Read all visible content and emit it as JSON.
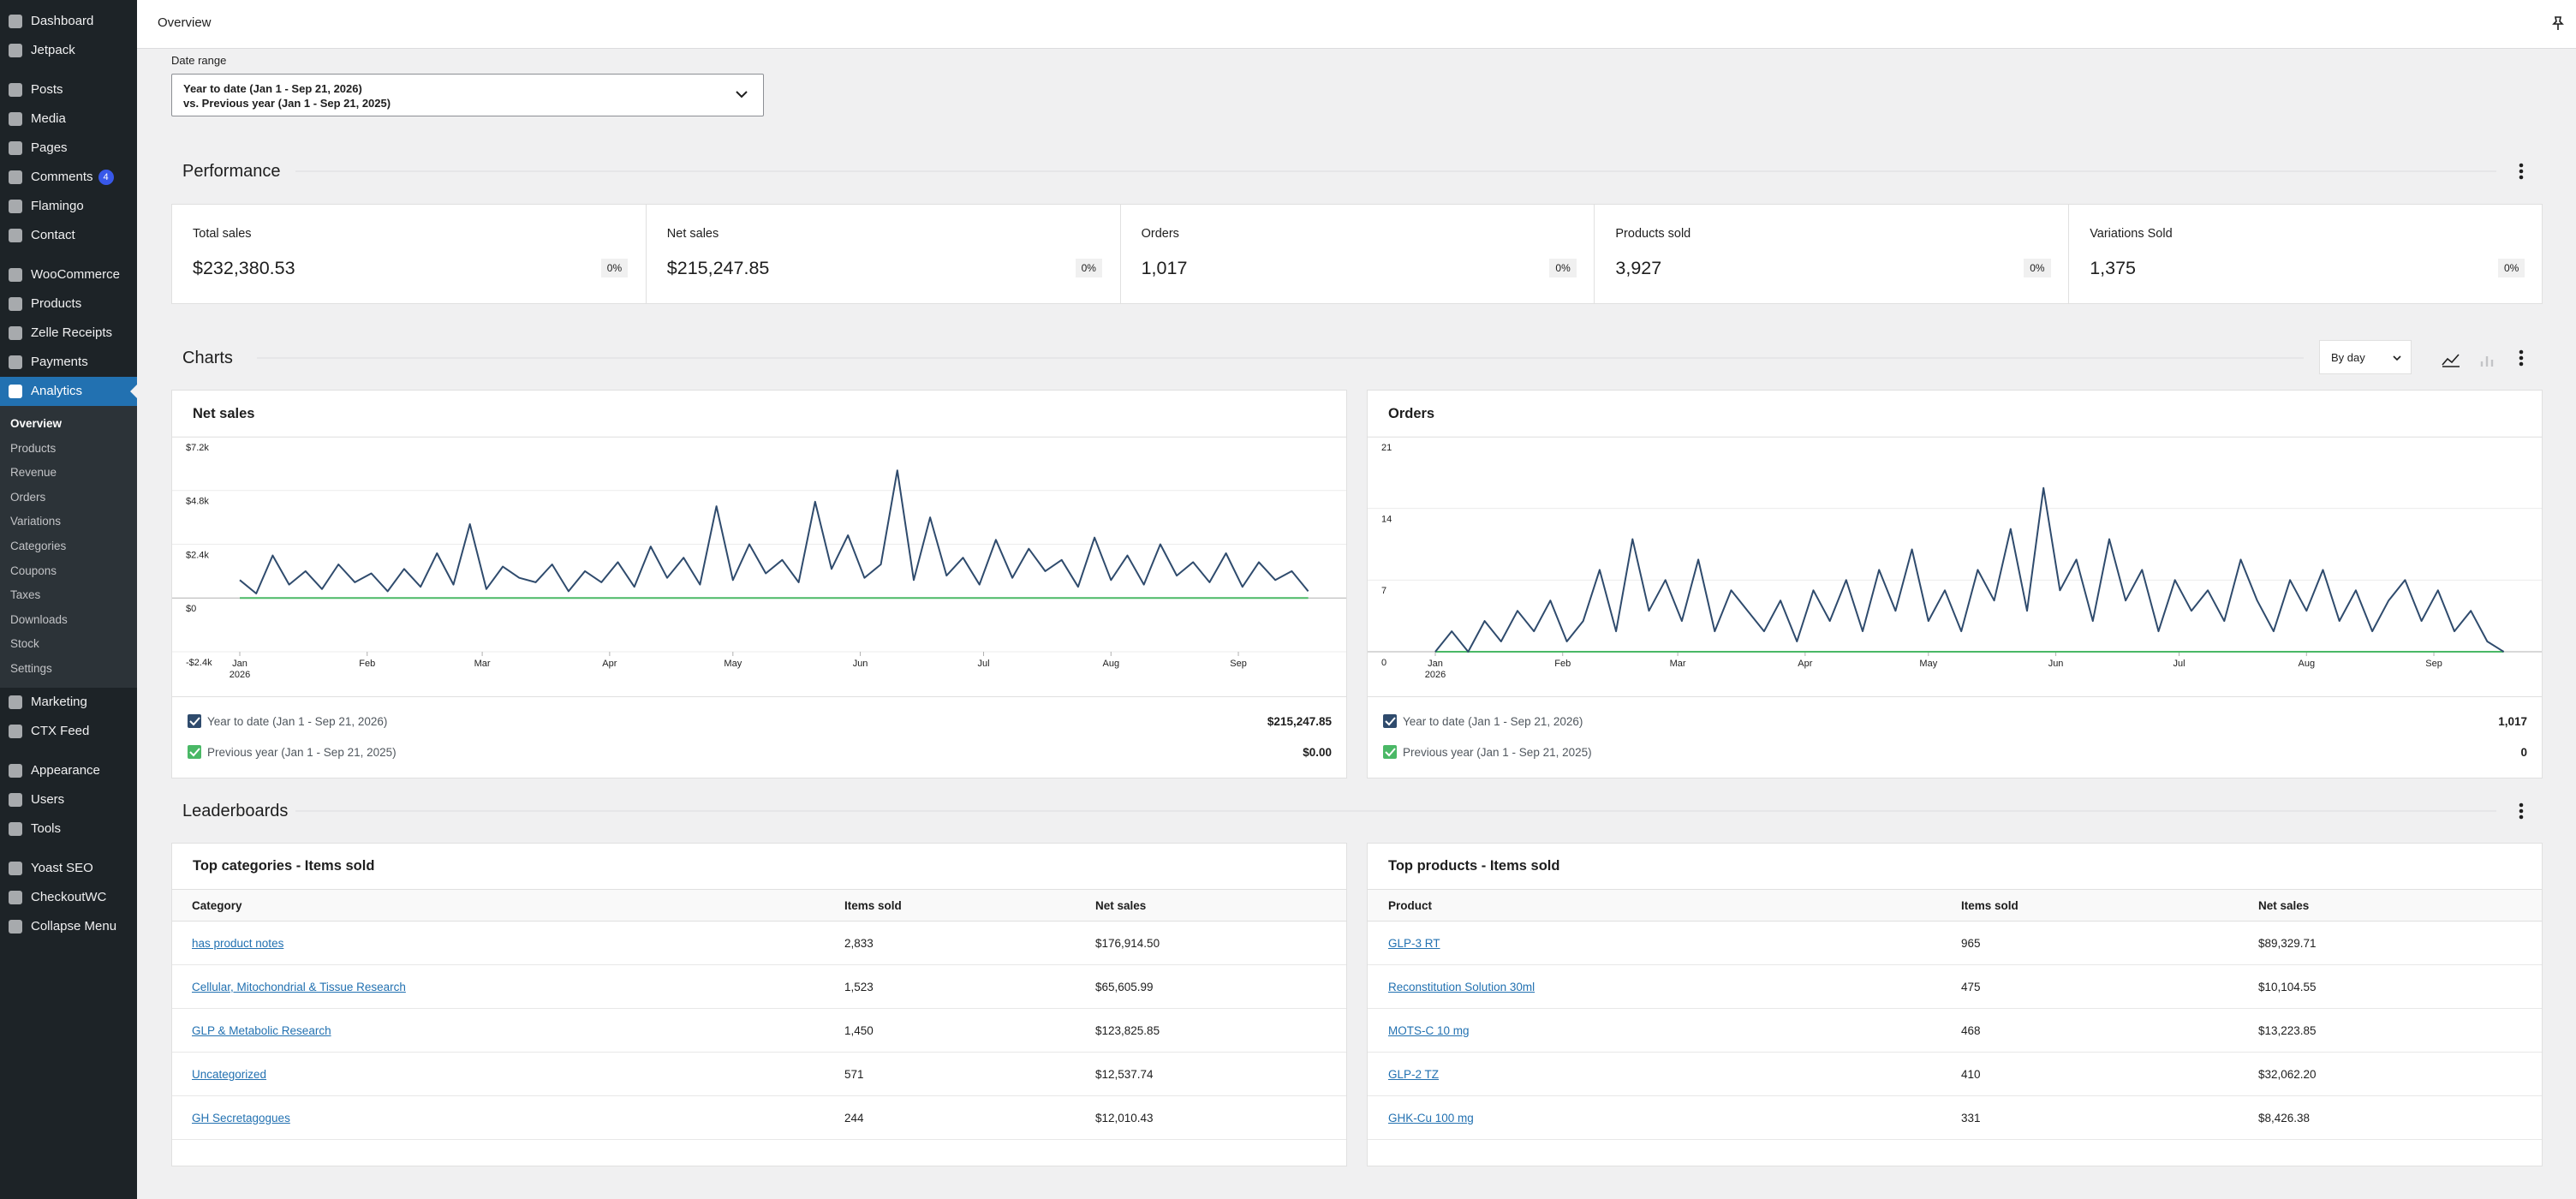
{
  "topbar": {
    "title": "Overview"
  },
  "sidebar": {
    "groups": [
      [
        {
          "label": "Dashboard"
        },
        {
          "label": "Jetpack"
        }
      ],
      [
        {
          "label": "Posts"
        },
        {
          "label": "Media"
        },
        {
          "label": "Pages"
        },
        {
          "label": "Comments",
          "badge": "4"
        },
        {
          "label": "Flamingo"
        },
        {
          "label": "Contact"
        }
      ],
      [
        {
          "label": "WooCommerce"
        },
        {
          "label": "Products"
        },
        {
          "label": "Zelle Receipts"
        },
        {
          "label": "Payments"
        },
        {
          "label": "Analytics",
          "active": true,
          "children": [
            {
              "label": "Overview",
              "active": true
            },
            {
              "label": "Products"
            },
            {
              "label": "Revenue"
            },
            {
              "label": "Orders"
            },
            {
              "label": "Variations"
            },
            {
              "label": "Categories"
            },
            {
              "label": "Coupons"
            },
            {
              "label": "Taxes"
            },
            {
              "label": "Downloads"
            },
            {
              "label": "Stock"
            },
            {
              "label": "Settings"
            }
          ]
        },
        {
          "label": "Marketing"
        },
        {
          "label": "CTX Feed"
        }
      ],
      [
        {
          "label": "Appearance"
        },
        {
          "label": "Users"
        },
        {
          "label": "Tools"
        }
      ],
      [
        {
          "label": "Yoast SEO"
        },
        {
          "label": "CheckoutWC"
        },
        {
          "label": "Collapse Menu"
        }
      ]
    ]
  },
  "date_range": {
    "label": "Date range",
    "line1": "Year to date (Jan 1 - Sep 21, 2026)",
    "line2": "vs. Previous year (Jan 1 - Sep 21, 2025)"
  },
  "performance": {
    "title": "Performance",
    "cards": [
      {
        "label": "Total sales",
        "value": "$232,380.53",
        "delta": "0%"
      },
      {
        "label": "Net sales",
        "value": "$215,247.85",
        "delta": "0%"
      },
      {
        "label": "Orders",
        "value": "1,017",
        "delta": "0%"
      },
      {
        "label": "Products sold",
        "value": "3,927",
        "delta": "0%"
      },
      {
        "label": "Variations Sold",
        "value": "1,375",
        "delta": "0%"
      }
    ]
  },
  "charts_section": {
    "title": "Charts",
    "interval": "By day"
  },
  "chart_data": [
    {
      "type": "line",
      "title": "Net sales",
      "x": [
        0,
        4,
        8,
        12,
        16,
        20,
        24,
        28,
        32,
        36,
        40,
        44,
        48,
        52,
        56,
        60,
        64,
        68,
        72,
        76,
        80,
        84,
        88,
        92,
        96,
        100,
        104,
        108,
        112,
        116,
        120,
        124,
        128,
        132,
        136,
        140,
        144,
        148,
        152,
        156,
        160,
        164,
        168,
        172,
        176,
        180,
        184,
        188,
        192,
        196,
        200,
        204,
        208,
        212,
        216,
        220,
        224,
        228,
        232,
        236,
        240,
        244,
        248,
        252,
        256,
        260
      ],
      "xlim": [
        0,
        263
      ],
      "xticks": [
        {
          "value": 0,
          "label": "Jan"
        },
        {
          "value": 31,
          "label": "Feb"
        },
        {
          "value": 59,
          "label": "Mar"
        },
        {
          "value": 90,
          "label": "Apr"
        },
        {
          "value": 120,
          "label": "May"
        },
        {
          "value": 151,
          "label": "Jun"
        },
        {
          "value": 181,
          "label": "Jul"
        },
        {
          "value": 212,
          "label": "Aug"
        },
        {
          "value": 243,
          "label": "Sep"
        }
      ],
      "x_sublabel": "2026",
      "ylim": [
        -2400,
        7200
      ],
      "yticks": [
        {
          "value": -2400,
          "label": "-$2.4k"
        },
        {
          "value": 0,
          "label": "$0"
        },
        {
          "value": 2400,
          "label": "$2.4k"
        },
        {
          "value": 4800,
          "label": "$4.8k"
        },
        {
          "value": 7200,
          "label": "$7.2k"
        }
      ],
      "grid": true,
      "series": [
        {
          "name": "Year to date (Jan 1 - Sep 21, 2026)",
          "color": "#2f4b6d",
          "total": "$215,247.85",
          "values": [
            800,
            200,
            1900,
            600,
            1200,
            400,
            1500,
            700,
            1100,
            300,
            1300,
            500,
            2000,
            600,
            3300,
            400,
            1400,
            900,
            700,
            1500,
            300,
            1200,
            700,
            1600,
            500,
            2300,
            900,
            1800,
            600,
            4100,
            800,
            2400,
            1100,
            1700,
            700,
            4300,
            1300,
            2800,
            900,
            1500,
            5700,
            800,
            3600,
            1000,
            1800,
            600,
            2600,
            900,
            2200,
            1200,
            1700,
            500,
            2700,
            800,
            1900,
            600,
            2400,
            1000,
            1600,
            700,
            2000,
            500,
            1600,
            800,
            1200,
            300
          ]
        },
        {
          "name": "Previous year (Jan 1 - Sep 21, 2025)",
          "color": "#4ab866",
          "total": "$0.00",
          "values": [
            0,
            0,
            0,
            0,
            0,
            0,
            0,
            0,
            0,
            0,
            0,
            0,
            0,
            0,
            0,
            0,
            0,
            0,
            0,
            0,
            0,
            0,
            0,
            0,
            0,
            0,
            0,
            0,
            0,
            0,
            0,
            0,
            0,
            0,
            0,
            0,
            0,
            0,
            0,
            0,
            0,
            0,
            0,
            0,
            0,
            0,
            0,
            0,
            0,
            0,
            0,
            0,
            0,
            0,
            0,
            0,
            0,
            0,
            0,
            0,
            0,
            0,
            0,
            0,
            0,
            0
          ]
        }
      ]
    },
    {
      "type": "line",
      "title": "Orders",
      "x": [
        0,
        4,
        8,
        12,
        16,
        20,
        24,
        28,
        32,
        36,
        40,
        44,
        48,
        52,
        56,
        60,
        64,
        68,
        72,
        76,
        80,
        84,
        88,
        92,
        96,
        100,
        104,
        108,
        112,
        116,
        120,
        124,
        128,
        132,
        136,
        140,
        144,
        148,
        152,
        156,
        160,
        164,
        168,
        172,
        176,
        180,
        184,
        188,
        192,
        196,
        200,
        204,
        208,
        212,
        216,
        220,
        224,
        228,
        232,
        236,
        240,
        244,
        248,
        252,
        256,
        260
      ],
      "xlim": [
        0,
        263
      ],
      "xticks": [
        {
          "value": 0,
          "label": "Jan"
        },
        {
          "value": 31,
          "label": "Feb"
        },
        {
          "value": 59,
          "label": "Mar"
        },
        {
          "value": 90,
          "label": "Apr"
        },
        {
          "value": 120,
          "label": "May"
        },
        {
          "value": 151,
          "label": "Jun"
        },
        {
          "value": 181,
          "label": "Jul"
        },
        {
          "value": 212,
          "label": "Aug"
        },
        {
          "value": 243,
          "label": "Sep"
        }
      ],
      "x_sublabel": "2026",
      "ylim": [
        0,
        21
      ],
      "yticks": [
        0,
        7,
        14,
        21
      ],
      "grid": true,
      "series": [
        {
          "name": "Year to date (Jan 1 - Sep 21, 2026)",
          "color": "#2f4b6d",
          "total": "1,017",
          "values": [
            0,
            2,
            0,
            3,
            1,
            4,
            2,
            5,
            1,
            3,
            8,
            2,
            11,
            4,
            7,
            3,
            9,
            2,
            6,
            4,
            2,
            5,
            1,
            6,
            3,
            7,
            2,
            8,
            4,
            10,
            3,
            6,
            2,
            8,
            5,
            12,
            4,
            16,
            6,
            9,
            3,
            11,
            5,
            8,
            2,
            7,
            4,
            6,
            3,
            9,
            5,
            2,
            7,
            4,
            8,
            3,
            6,
            2,
            5,
            7,
            3,
            6,
            2,
            4,
            1,
            0
          ]
        },
        {
          "name": "Previous year (Jan 1 - Sep 21, 2025)",
          "color": "#4ab866",
          "total": "0",
          "values": [
            0,
            0,
            0,
            0,
            0,
            0,
            0,
            0,
            0,
            0,
            0,
            0,
            0,
            0,
            0,
            0,
            0,
            0,
            0,
            0,
            0,
            0,
            0,
            0,
            0,
            0,
            0,
            0,
            0,
            0,
            0,
            0,
            0,
            0,
            0,
            0,
            0,
            0,
            0,
            0,
            0,
            0,
            0,
            0,
            0,
            0,
            0,
            0,
            0,
            0,
            0,
            0,
            0,
            0,
            0,
            0,
            0,
            0,
            0,
            0,
            0,
            0,
            0,
            0,
            0,
            0
          ]
        }
      ]
    }
  ],
  "leaderboards": {
    "title": "Leaderboards",
    "tables": [
      {
        "title": "Top categories - Items sold",
        "columns": [
          "Category",
          "Items sold",
          "Net sales"
        ],
        "rows": [
          [
            "has product notes",
            "2,833",
            "$176,914.50"
          ],
          [
            "Cellular, Mitochondrial & Tissue Research",
            "1,523",
            "$65,605.99"
          ],
          [
            "GLP & Metabolic Research",
            "1,450",
            "$123,825.85"
          ],
          [
            "Uncategorized",
            "571",
            "$12,537.74"
          ],
          [
            "GH Secretagogues",
            "244",
            "$12,010.43"
          ]
        ]
      },
      {
        "title": "Top products - Items sold",
        "columns": [
          "Product",
          "Items sold",
          "Net sales"
        ],
        "rows": [
          [
            "GLP-3 RT",
            "965",
            "$89,329.71"
          ],
          [
            "Reconstitution Solution 30ml",
            "475",
            "$10,104.55"
          ],
          [
            "MOTS-C 10 mg",
            "468",
            "$13,223.85"
          ],
          [
            "GLP-2 TZ",
            "410",
            "$32,062.20"
          ],
          [
            "GHK-Cu 100 mg",
            "331",
            "$8,426.38"
          ]
        ]
      }
    ]
  }
}
